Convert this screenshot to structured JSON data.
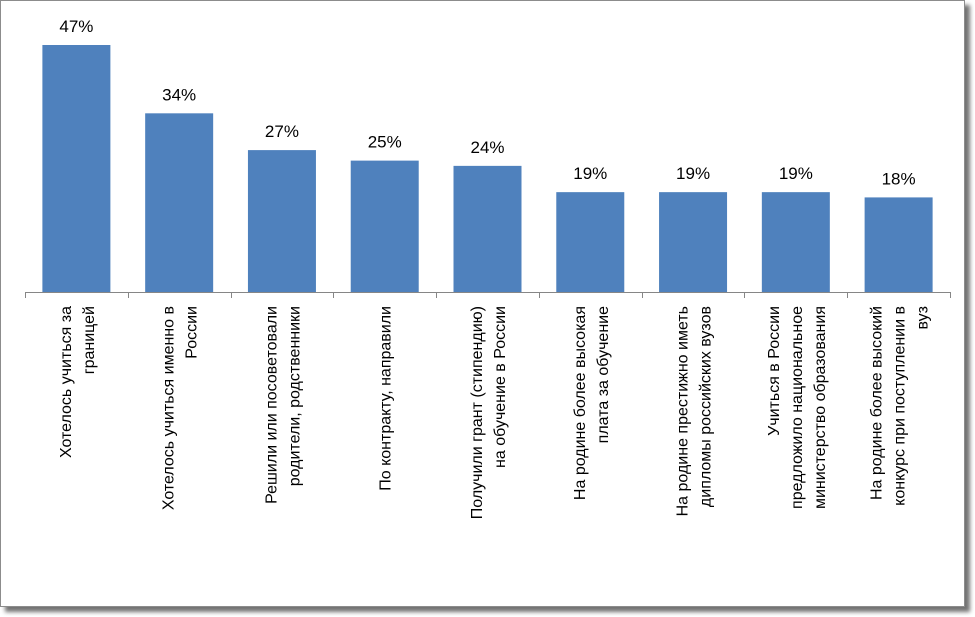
{
  "chart_data": {
    "type": "bar",
    "categories": [
      [
        "Хотелось учиться за",
        "границей"
      ],
      [
        "Хотелось учиться именно в",
        "России"
      ],
      [
        "Решили или посоветовали",
        "родители, родственники"
      ],
      [
        "По контракту, направили"
      ],
      [
        "Получили грант (стипендию)",
        "на обучение в России"
      ],
      [
        "На родине более высокая",
        "плата за обучение"
      ],
      [
        "На родине престижно иметь",
        "дипломы российских вузов"
      ],
      [
        "Учиться в России",
        "предложило национальное",
        "министерство образования"
      ],
      [
        "На родине более высокий",
        "конкурс при поступлении в",
        "вуз"
      ]
    ],
    "values": [
      47,
      34,
      27,
      25,
      24,
      19,
      19,
      19,
      18
    ],
    "data_labels": [
      "47%",
      "34%",
      "27%",
      "25%",
      "24%",
      "19%",
      "19%",
      "19%",
      "18%"
    ],
    "ylim": [
      0,
      50
    ],
    "bar_color": "#4f81bd",
    "grid": false,
    "legend": "none"
  }
}
